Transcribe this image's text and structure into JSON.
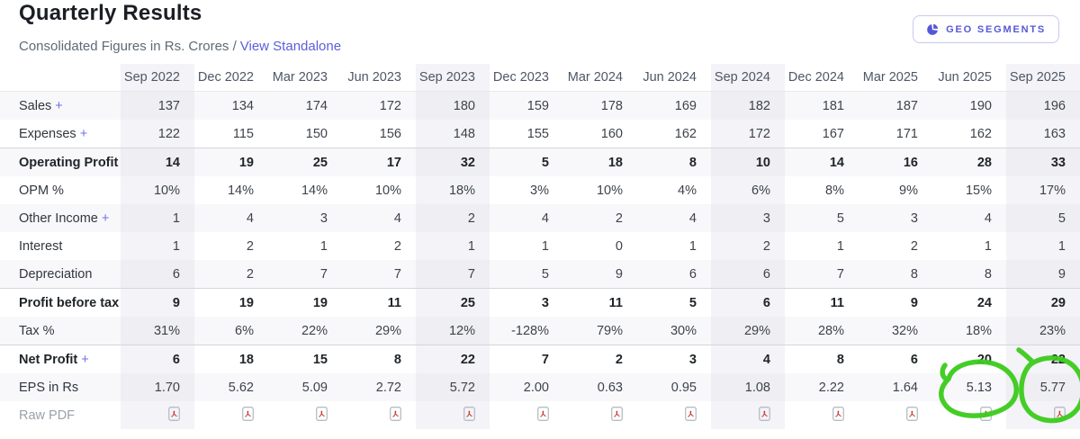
{
  "header": {
    "title": "Quarterly Results",
    "subtitle_prefix": "Consolidated Figures in Rs. Crores /",
    "standalone_link": "View Standalone",
    "geo_segments_label": "GEO SEGMENTS"
  },
  "colors": {
    "accent_purple": "#5b5edb",
    "annotation_green": "#3ccb1c",
    "column_highlight": "#f3f3f8",
    "row_stripe": "#f8f8fb"
  },
  "table": {
    "columns": [
      "Sep 2022",
      "Dec 2022",
      "Mar 2023",
      "Jun 2023",
      "Sep 2023",
      "Dec 2023",
      "Mar 2024",
      "Jun 2024",
      "Sep 2024",
      "Dec 2024",
      "Mar 2025",
      "Jun 2025",
      "Sep 2025"
    ],
    "highlighted_columns": [
      0,
      4,
      8,
      12
    ],
    "rows": [
      {
        "label": "Sales",
        "expandable": true,
        "bold": false,
        "separator": false,
        "values": [
          "137",
          "134",
          "174",
          "172",
          "180",
          "159",
          "178",
          "169",
          "182",
          "181",
          "187",
          "190",
          "196"
        ]
      },
      {
        "label": "Expenses",
        "expandable": true,
        "bold": false,
        "separator": false,
        "values": [
          "122",
          "115",
          "150",
          "156",
          "148",
          "155",
          "160",
          "162",
          "172",
          "167",
          "171",
          "162",
          "163"
        ]
      },
      {
        "label": "Operating Profit",
        "expandable": false,
        "bold": true,
        "separator": true,
        "values": [
          "14",
          "19",
          "25",
          "17",
          "32",
          "5",
          "18",
          "8",
          "10",
          "14",
          "16",
          "28",
          "33"
        ]
      },
      {
        "label": "OPM %",
        "expandable": false,
        "bold": false,
        "separator": false,
        "values": [
          "10%",
          "14%",
          "14%",
          "10%",
          "18%",
          "3%",
          "10%",
          "4%",
          "6%",
          "8%",
          "9%",
          "15%",
          "17%"
        ]
      },
      {
        "label": "Other Income",
        "expandable": true,
        "bold": false,
        "separator": false,
        "values": [
          "1",
          "4",
          "3",
          "4",
          "2",
          "4",
          "2",
          "4",
          "3",
          "5",
          "3",
          "4",
          "5"
        ]
      },
      {
        "label": "Interest",
        "expandable": false,
        "bold": false,
        "separator": false,
        "values": [
          "1",
          "2",
          "1",
          "2",
          "1",
          "1",
          "0",
          "1",
          "2",
          "1",
          "2",
          "1",
          "1"
        ]
      },
      {
        "label": "Depreciation",
        "expandable": false,
        "bold": false,
        "separator": false,
        "values": [
          "6",
          "2",
          "7",
          "7",
          "7",
          "5",
          "9",
          "6",
          "6",
          "7",
          "8",
          "8",
          "9"
        ]
      },
      {
        "label": "Profit before tax",
        "expandable": false,
        "bold": true,
        "separator": true,
        "values": [
          "9",
          "19",
          "19",
          "11",
          "25",
          "3",
          "11",
          "5",
          "6",
          "11",
          "9",
          "24",
          "29"
        ]
      },
      {
        "label": "Tax %",
        "expandable": false,
        "bold": false,
        "separator": false,
        "values": [
          "31%",
          "6%",
          "22%",
          "29%",
          "12%",
          "-128%",
          "79%",
          "30%",
          "29%",
          "28%",
          "32%",
          "18%",
          "23%"
        ]
      },
      {
        "label": "Net Profit",
        "expandable": true,
        "bold": true,
        "separator": true,
        "values": [
          "6",
          "18",
          "15",
          "8",
          "22",
          "7",
          "2",
          "3",
          "4",
          "8",
          "6",
          "20",
          "22"
        ]
      },
      {
        "label": "EPS in Rs",
        "expandable": false,
        "bold": false,
        "separator": false,
        "values": [
          "1.70",
          "5.62",
          "5.09",
          "2.72",
          "5.72",
          "2.00",
          "0.63",
          "0.95",
          "1.08",
          "2.22",
          "1.64",
          "5.13",
          "5.77"
        ]
      },
      {
        "label": "Raw PDF",
        "expandable": false,
        "bold": false,
        "separator": false,
        "type": "pdf"
      }
    ]
  },
  "annotations": {
    "type": "hand-drawn-circles",
    "color": "#3ccb1c",
    "circled_values": [
      "5.13",
      "5.77"
    ],
    "circled_row": "EPS in Rs",
    "circled_columns": [
      "Jun 2025",
      "Sep 2025"
    ]
  }
}
